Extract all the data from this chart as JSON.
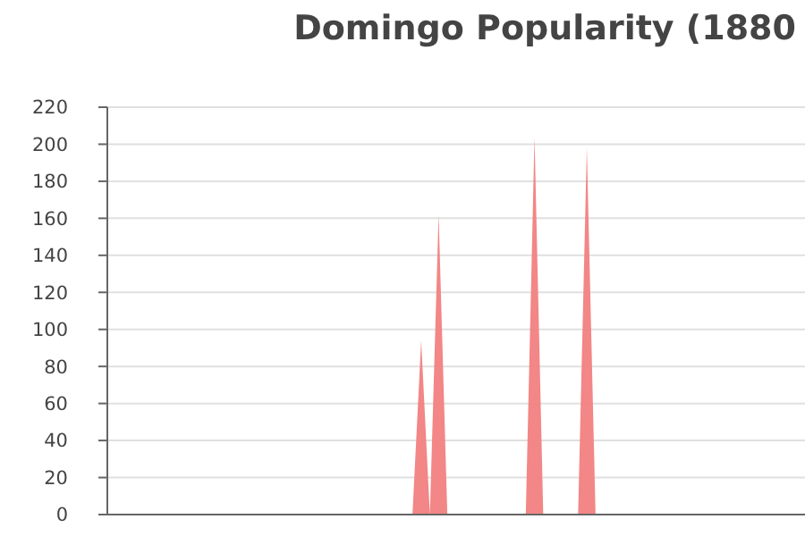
{
  "chart_data": {
    "type": "area",
    "title": "Domingo Popularity (1880",
    "categories": [
      null,
      null,
      null,
      null,
      null,
      null,
      null,
      null,
      null,
      null,
      null,
      null,
      null,
      null,
      null,
      null,
      null,
      null,
      null,
      null,
      null,
      null,
      null,
      null,
      null,
      null,
      null,
      null,
      null,
      null,
      null,
      null,
      null,
      null,
      null,
      null,
      null,
      null,
      null,
      null,
      null,
      null,
      null,
      null,
      null,
      null,
      null,
      null,
      null,
      null,
      null,
      null,
      null,
      null,
      null,
      null,
      null,
      null,
      null,
      null,
      null,
      null,
      null,
      null,
      null,
      null,
      null,
      null,
      null,
      null,
      null,
      null,
      null,
      null,
      null,
      null,
      null,
      null,
      null,
      null
    ],
    "series": [
      {
        "color": "#f28080",
        "values": [
          0,
          0,
          0,
          0,
          0,
          0,
          0,
          0,
          0,
          0,
          0,
          0,
          0,
          0,
          0,
          0,
          0,
          0,
          0,
          0,
          0,
          0,
          0,
          0,
          0,
          0,
          0,
          0,
          0,
          0,
          0,
          0,
          0,
          0,
          0,
          0,
          94,
          0,
          162,
          0,
          0,
          0,
          0,
          0,
          0,
          0,
          0,
          0,
          0,
          204,
          0,
          0,
          0,
          0,
          0,
          198,
          0,
          0,
          0,
          0,
          0,
          0,
          0,
          0,
          0,
          0,
          0,
          0,
          0,
          0,
          0,
          0,
          0,
          0,
          0,
          0,
          0,
          0,
          0,
          0
        ]
      }
    ],
    "ylim": [
      0,
      220
    ],
    "yticks": [
      0,
      20,
      40,
      60,
      80,
      100,
      120,
      140,
      160,
      180,
      200,
      220
    ],
    "grid": "y"
  }
}
